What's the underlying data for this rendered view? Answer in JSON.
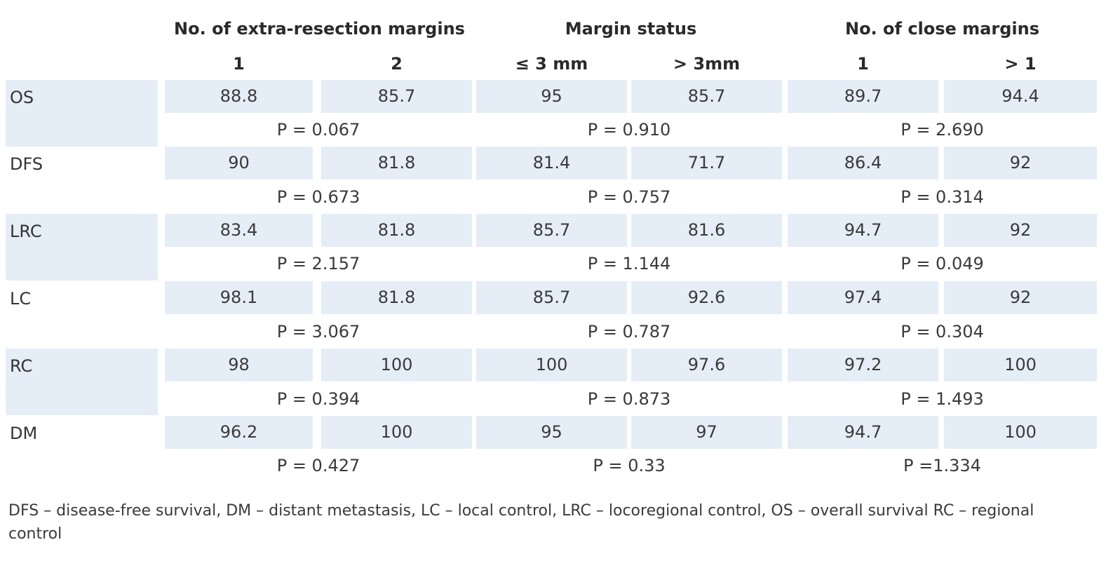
{
  "headers": {
    "group1": "No. of extra-resection margins",
    "group2": "Margin status",
    "group3": "No. of close margins",
    "sub": [
      "1",
      "2",
      "≤ 3 mm",
      "> 3mm",
      "1",
      "> 1"
    ]
  },
  "rows": [
    {
      "label": "OS",
      "values": [
        "88.8",
        "85.7",
        "95",
        "85.7",
        "89.7",
        "94.4"
      ],
      "p": [
        "P = 0.067",
        "P = 0.910",
        "P = 2.690"
      ]
    },
    {
      "label": "DFS",
      "values": [
        "90",
        "81.8",
        "81.4",
        "71.7",
        "86.4",
        "92"
      ],
      "p": [
        "P = 0.673",
        "P = 0.757",
        "P = 0.314"
      ]
    },
    {
      "label": "LRC",
      "values": [
        "83.4",
        "81.8",
        "85.7",
        "81.6",
        "94.7",
        "92"
      ],
      "p": [
        "P = 2.157",
        "P = 1.144",
        "P = 0.049"
      ]
    },
    {
      "label": "LC",
      "values": [
        "98.1",
        "81.8",
        "85.7",
        "92.6",
        "97.4",
        "92"
      ],
      "p": [
        "P = 3.067",
        "P = 0.787",
        "P = 0.304"
      ]
    },
    {
      "label": "RC",
      "values": [
        "98",
        "100",
        "100",
        "97.6",
        "97.2",
        "100"
      ],
      "p": [
        "P = 0.394",
        "P = 0.873",
        "P = 1.493"
      ]
    },
    {
      "label": "DM",
      "values": [
        "96.2",
        "100",
        "95",
        "97",
        "94.7",
        "100"
      ],
      "p": [
        "P = 0.427",
        "P = 0.33",
        "P =1.334"
      ]
    }
  ],
  "footnote": "DFS – disease-free survival, DM – distant metastasis, LC – local control, LRC – locoregional control, OS – overall survival RC – regio­nal control",
  "colors": {
    "cell_fill": "#e5edf7",
    "text": "#333333"
  }
}
